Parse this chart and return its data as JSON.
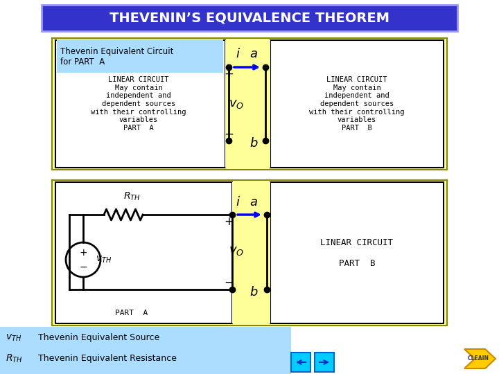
{
  "title": "THEVENIN’S EQUIVALENCE THEOREM",
  "title_bg": "#3333cc",
  "title_color": "#ffffff",
  "bg_color": "#ffffff",
  "slide_bg": "#f0f0f0",
  "yellow_bg": "#ffff99",
  "blue_label_bg": "#aaddff",
  "top_box_left_text": "LINEAR CIRCUIT\nMay contain\nindependent and\ndependent sources\nwith their controlling\nvariables\nPART  A",
  "top_box_right_text": "LINEAR CIRCUIT\nMay contain\nindependent and\ndependent sources\nwith their controlling\nvariables\nPART  B",
  "bot_box_left_label": "PART  A",
  "bot_box_right_text": "LINEAR CIRCUIT\n\nPART  B",
  "thevenin_label": "Thevenin Equivalent Circuit\nfor PART  A",
  "vth_label": "v_{TH}",
  "rth_label": "R_{TH}",
  "vth_desc": "Thevenin Equivalent Source",
  "rth_desc": "Thevenin Equivalent Resistance",
  "cleain_text": "CLEAIN"
}
